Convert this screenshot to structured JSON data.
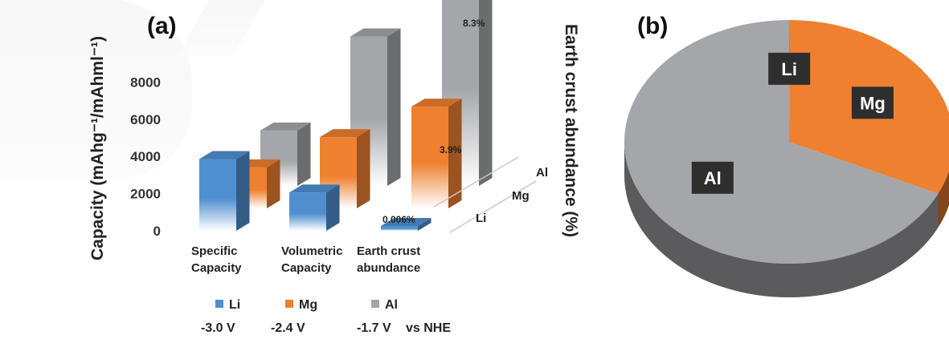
{
  "chart_data": [
    {
      "panel": "(a)",
      "type": "bar",
      "ylabel": "Capacity (mAhg⁻¹/mAhml⁻¹)",
      "yticks": [
        "0",
        "2000",
        "4000",
        "6000",
        "8000"
      ],
      "ylim": [
        0,
        10000
      ],
      "categories": [
        "Specific\nCapacity",
        "Volumetric\nCapacity",
        "Earth crust\nabundance"
      ],
      "depth_labels": [
        "Li",
        "Mg",
        "Al"
      ],
      "series": [
        {
          "name": "Li",
          "values": [
            3860,
            2060,
            0.006
          ],
          "voltage": "-3.0 V",
          "color": "#4f8fd0"
        },
        {
          "name": "Mg",
          "values": [
            2205,
            3830,
            3.9
          ],
          "voltage": "-2.4 V",
          "color": "#ee8030"
        },
        {
          "name": "Al",
          "values": [
            2980,
            8040,
            8.3
          ],
          "voltage": "-1.7 V",
          "color": "#a5a6a9"
        }
      ],
      "data_labels": [
        "0.006%",
        "3.9%",
        "8.3%"
      ],
      "abundance_axis_label": "Earth crust abundance (%)",
      "vs_label": "vs NHE"
    },
    {
      "panel": "(b)",
      "type": "pie",
      "slices": [
        {
          "label": "Li",
          "value": 0.006,
          "color": "#4f8fd0"
        },
        {
          "label": "Mg",
          "value": 3.9,
          "color": "#ee8030"
        },
        {
          "label": "Al",
          "value": 8.3,
          "color": "#a5a6a9"
        }
      ]
    }
  ]
}
